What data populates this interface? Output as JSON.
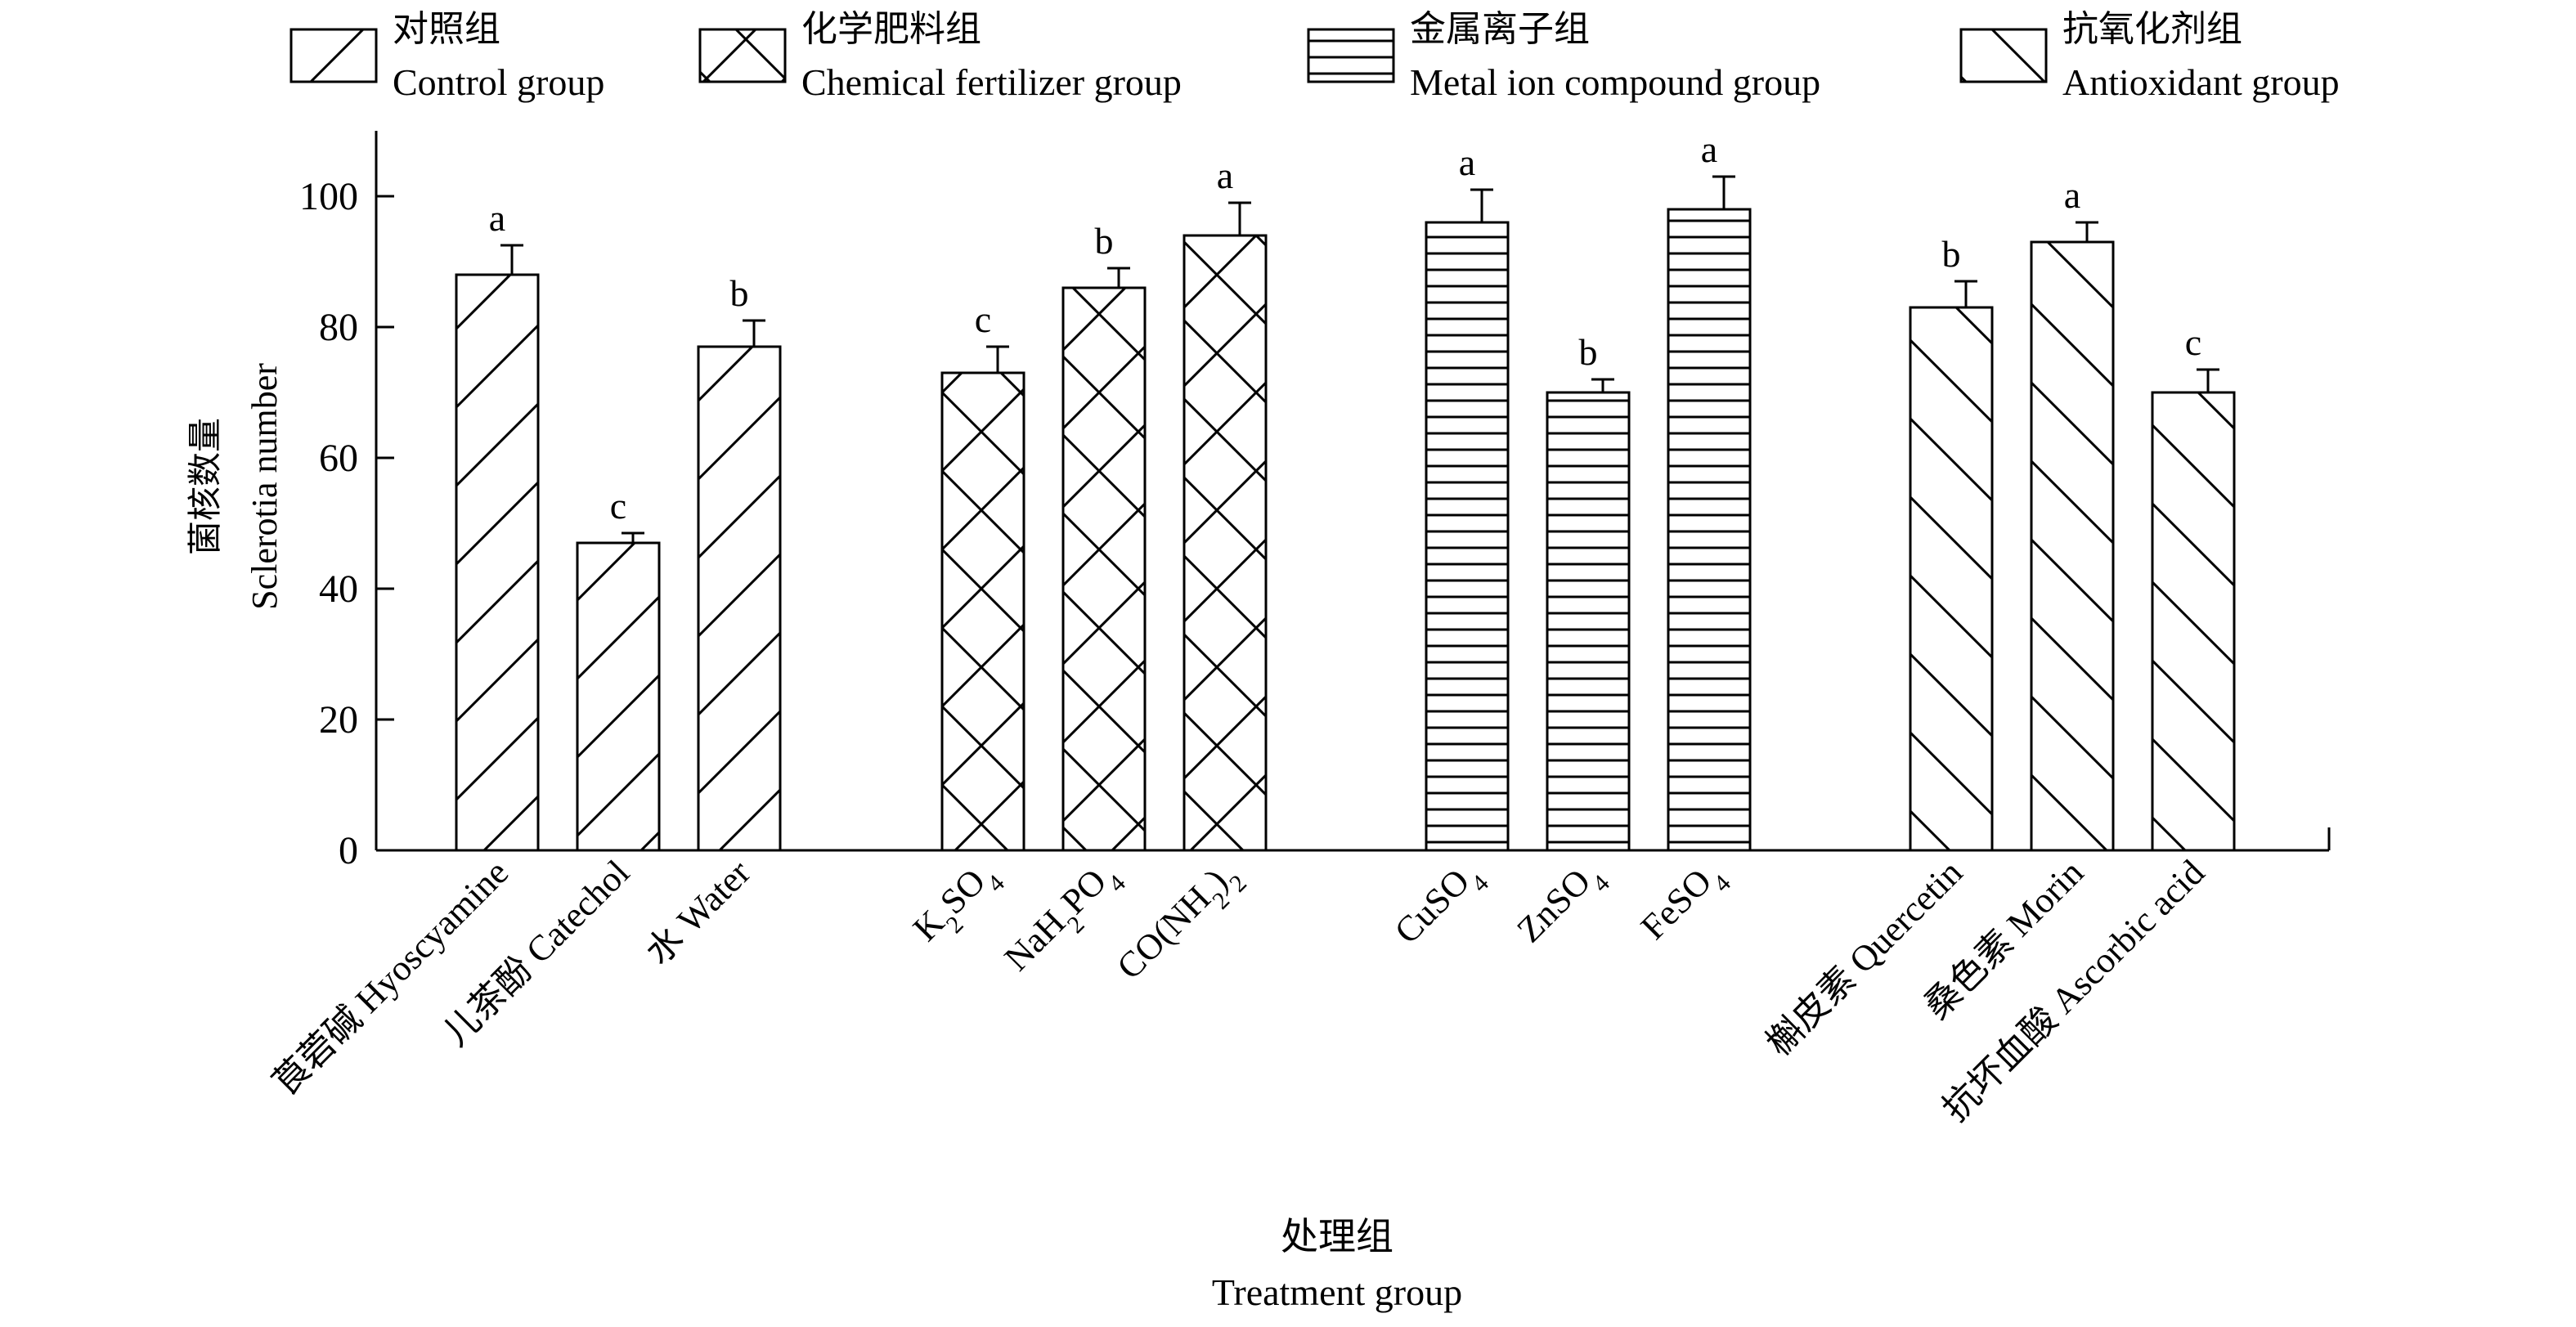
{
  "colors": {
    "ink": "#000000",
    "background": "#ffffff"
  },
  "legend": [
    {
      "pattern": "diag-fwd",
      "zh": "对照组",
      "en": "Control group"
    },
    {
      "pattern": "cross",
      "zh": "化学肥料组",
      "en": "Chemical fertilizer group"
    },
    {
      "pattern": "horizontal",
      "zh": "金属离子组",
      "en": "Metal ion compound group"
    },
    {
      "pattern": "diag-back",
      "zh": "抗氧化剂组",
      "en": "Antioxidant group"
    }
  ],
  "chart_data": {
    "type": "bar",
    "ylabel_zh": "菌核数量",
    "ylabel_en": "Sclerotia number",
    "xlabel_zh": "处理组",
    "xlabel_en": "Treatment group",
    "ylim": [
      0,
      110
    ],
    "yticks": [
      0,
      20,
      40,
      60,
      80,
      100
    ],
    "grid": false,
    "legend_position": "top",
    "groups": [
      {
        "name": "Control group",
        "pattern": "diag-fwd",
        "bars": [
          {
            "label": "莨菪碱 Hyoscyamine",
            "value": 88,
            "error": 4.5,
            "letter": "a"
          },
          {
            "label": "儿茶酚 Catechol",
            "value": 47,
            "error": 1.5,
            "letter": "c"
          },
          {
            "label": "水 Water",
            "value": 77,
            "error": 4,
            "letter": "b"
          }
        ]
      },
      {
        "name": "Chemical fertilizer group",
        "pattern": "cross",
        "bars": [
          {
            "label": "K2SO4",
            "value": 73,
            "error": 4,
            "letter": "c"
          },
          {
            "label": "NaH2PO4",
            "value": 86,
            "error": 3,
            "letter": "b"
          },
          {
            "label": "CO(NH2)2",
            "value": 94,
            "error": 5,
            "letter": "a"
          }
        ]
      },
      {
        "name": "Metal ion compound group",
        "pattern": "horizontal",
        "bars": [
          {
            "label": "CuSO4",
            "value": 96,
            "error": 5,
            "letter": "a"
          },
          {
            "label": "ZnSO4",
            "value": 70,
            "error": 2,
            "letter": "b"
          },
          {
            "label": "FeSO4",
            "value": 98,
            "error": 5,
            "letter": "a"
          }
        ]
      },
      {
        "name": "Antioxidant group",
        "pattern": "diag-back",
        "bars": [
          {
            "label": "槲皮素 Quercetin",
            "value": 83,
            "error": 4,
            "letter": "b"
          },
          {
            "label": "桑色素 Morin",
            "value": 93,
            "error": 3,
            "letter": "a"
          },
          {
            "label": "抗坏血酸 Ascorbic acid",
            "value": 70,
            "error": 3.5,
            "letter": "c"
          }
        ]
      }
    ]
  }
}
